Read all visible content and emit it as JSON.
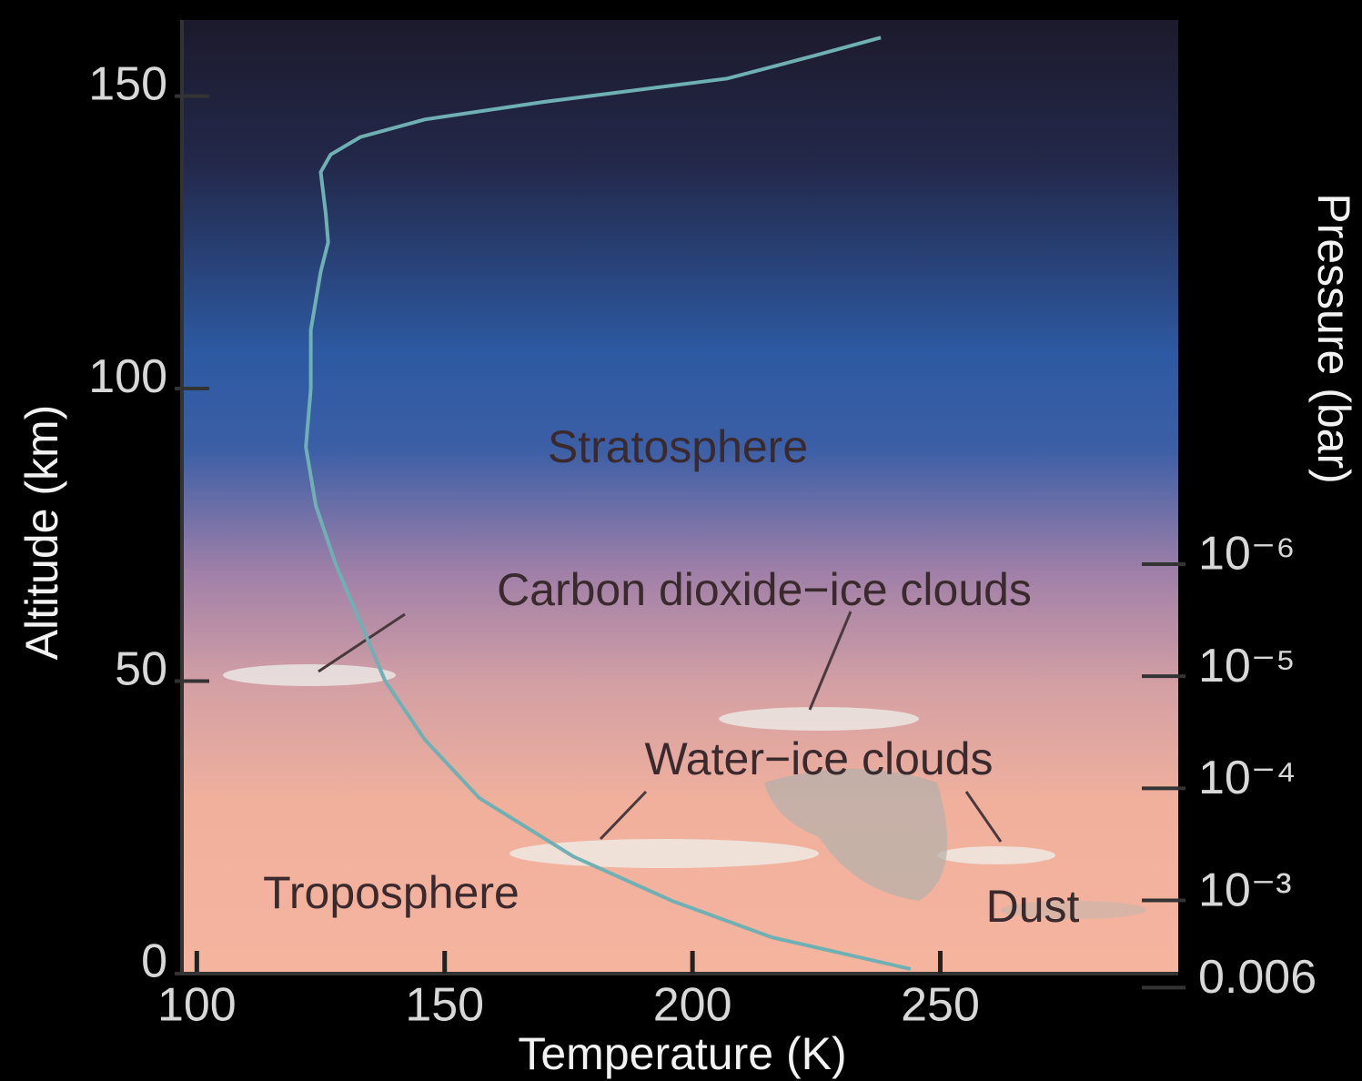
{
  "chart_data": {
    "type": "line",
    "x_label": "Temperature (K)",
    "y_label": "Altitude (km)",
    "y2_label": "Pressure (bar)",
    "annotations": [
      "Stratosphere",
      "Carbon dioxide−ice clouds",
      "Water−ice clouds",
      "Troposphere",
      "Dust"
    ],
    "x": [
      244,
      216,
      196,
      176,
      157,
      146,
      138,
      133,
      128,
      124,
      122,
      123,
      123,
      125,
      126.5,
      126,
      125,
      127,
      133,
      146,
      170,
      207,
      225,
      238
    ],
    "series": [
      {
        "color": "#6fb0b4",
        "values": [
          0.8,
          6.2,
          12.4,
          20,
          30,
          40,
          50,
          60,
          70,
          80,
          90,
          100,
          110,
          120,
          125,
          130,
          137,
          140,
          143,
          146,
          149,
          153,
          157,
          160
        ]
      }
    ],
    "xlim": [
      97,
      298
    ],
    "xticks": [
      100,
      150,
      200,
      250
    ],
    "ylim": [
      0,
      163
    ],
    "yticks": [
      0,
      50,
      100,
      150
    ],
    "y2lim": [
      0.0045,
      1.4e-11
    ],
    "y2scale": "log",
    "y2ticks": [
      {
        "value": 1e-06,
        "label": "10⁻⁶"
      },
      {
        "value": 1e-05,
        "label": "10⁻⁵"
      },
      {
        "value": 0.0001,
        "label": "10⁻⁴"
      },
      {
        "value": 0.001,
        "label": "10⁻³"
      },
      0.006
    ]
  }
}
